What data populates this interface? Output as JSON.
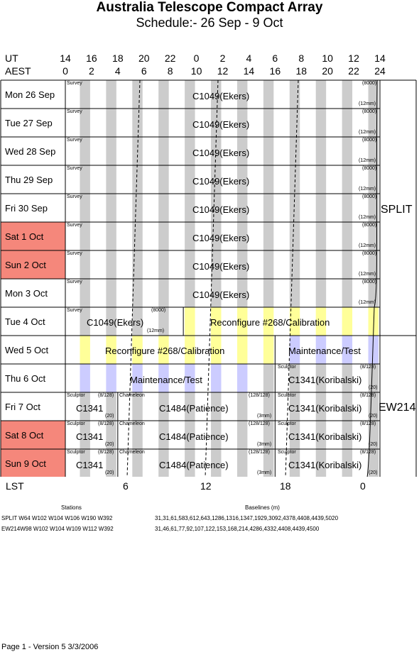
{
  "title": "Australia Telescope Compact Array",
  "subtitle": "Schedule:- 26 Sep - 9  Oct",
  "ut_label": "UT",
  "aest_label": "AEST",
  "ut_ticks": [
    "14",
    "16",
    "18",
    "20",
    "22",
    "0",
    "2",
    "4",
    "6",
    "8",
    "10",
    "12",
    "14"
  ],
  "aest_ticks": [
    "0",
    "2",
    "4",
    "6",
    "8",
    "10",
    "12",
    "14",
    "16",
    "18",
    "20",
    "22",
    "24"
  ],
  "lst_label": "LST",
  "lst_ticks": [
    "6",
    "12",
    "18",
    "0"
  ],
  "weekend_color": "#f5877b",
  "days": [
    {
      "label": "Mon  26 Sep",
      "weekend": false
    },
    {
      "label": "Tue   27 Sep",
      "weekend": false
    },
    {
      "label": "Wed  28 Sep",
      "weekend": false
    },
    {
      "label": "Thu   29 Sep",
      "weekend": false
    },
    {
      "label": "Fri    30 Sep",
      "weekend": false
    },
    {
      "label": "Sat    1  Oct",
      "weekend": true
    },
    {
      "label": "Sun   2  Oct",
      "weekend": true
    },
    {
      "label": "Mon   3  Oct",
      "weekend": false
    },
    {
      "label": "Tue    4  Oct",
      "weekend": false
    },
    {
      "label": "Wed   5  Oct",
      "weekend": false
    },
    {
      "label": "Thu    6  Oct",
      "weekend": false
    },
    {
      "label": "Fri     7  Oct",
      "weekend": false
    },
    {
      "label": "Sat    8  Oct",
      "weekend": true
    },
    {
      "label": "Sun   9  Oct",
      "weekend": true
    }
  ],
  "labels": {
    "survey": "Survey",
    "c1049": "C1049(Ekers)",
    "note_8000": "(8000)",
    "note_12mm": "(12mm)",
    "reconfig": "Reconfigure #268/Calibration",
    "maint": "Maintenance/Test",
    "sculptor": "Sculptor",
    "note_8128": "(8/128)",
    "c1341": "C1341",
    "note_20": "(20)",
    "chameleon": "Chameleon",
    "c1484": "C1484(Patience)",
    "note_128128": "(128/128)",
    "note_3mm": "(3mm)",
    "c1341k": "C1341(Koribalski)"
  },
  "configs": [
    "SPLIT",
    "EW214"
  ],
  "footer": {
    "stations_head": "Stations",
    "baselines_head": "Baselines (m)",
    "rows": [
      {
        "stations": "SPLIT W64 W102 W104 W106 W190 W392",
        "baselines": "31,31,61,583,612,643,1286,1316,1347,1929,3092,4378,4408,4439,5020"
      },
      {
        "stations": "EW214W98 W102 W104 W109 W112 W392",
        "baselines": "31,46,61,77,92,107,122,153,168,214,4286,4332,4408,4439,4500"
      }
    ]
  },
  "page_footer": "Page 1 - Version 5  3/3/2006"
}
